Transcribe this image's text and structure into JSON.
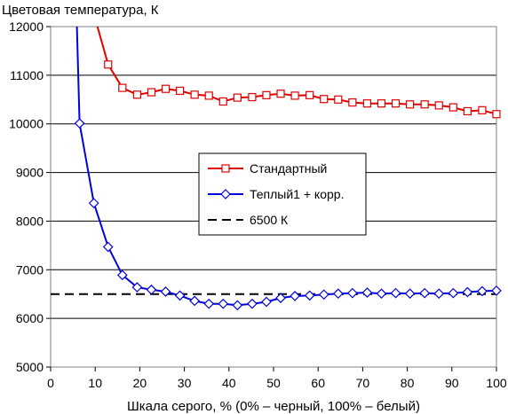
{
  "chart_data": {
    "type": "line",
    "title": "Цветовая температура, К",
    "xlabel": "Шкала серого, % (0% – черный, 100% – белый)",
    "ylabel": "",
    "xlim": [
      0,
      100
    ],
    "ylim": [
      5000,
      12000
    ],
    "x_ticks": [
      0,
      10,
      20,
      30,
      40,
      50,
      60,
      70,
      80,
      90,
      100
    ],
    "y_ticks": [
      5000,
      6000,
      7000,
      8000,
      9000,
      10000,
      11000,
      12000
    ],
    "grid": "horizontal",
    "legend_position": "center",
    "series": [
      {
        "name": "Стандартный",
        "color": "#e00000",
        "marker": "square",
        "line_only": [
          [
            10.5,
            12000
          ]
        ],
        "points": [
          [
            12.9,
            11220
          ],
          [
            16.1,
            10740
          ],
          [
            19.4,
            10600
          ],
          [
            22.6,
            10650
          ],
          [
            25.8,
            10720
          ],
          [
            29.0,
            10680
          ],
          [
            32.3,
            10600
          ],
          [
            35.5,
            10580
          ],
          [
            38.7,
            10460
          ],
          [
            41.9,
            10540
          ],
          [
            45.2,
            10550
          ],
          [
            48.4,
            10590
          ],
          [
            51.6,
            10620
          ],
          [
            54.8,
            10580
          ],
          [
            58.1,
            10590
          ],
          [
            61.3,
            10510
          ],
          [
            64.5,
            10500
          ],
          [
            67.7,
            10440
          ],
          [
            71.0,
            10420
          ],
          [
            74.2,
            10420
          ],
          [
            77.4,
            10420
          ],
          [
            80.6,
            10400
          ],
          [
            83.9,
            10400
          ],
          [
            87.1,
            10380
          ],
          [
            90.3,
            10340
          ],
          [
            93.5,
            10260
          ],
          [
            96.8,
            10280
          ],
          [
            100.0,
            10200
          ]
        ]
      },
      {
        "name": "Теплый1 + корр.",
        "color": "#0000e0",
        "marker": "diamond",
        "line_only": [
          [
            5.9,
            12000
          ]
        ],
        "points": [
          [
            6.5,
            10010
          ],
          [
            9.7,
            8370
          ],
          [
            12.9,
            7470
          ],
          [
            16.1,
            6890
          ],
          [
            19.4,
            6640
          ],
          [
            22.6,
            6590
          ],
          [
            25.8,
            6550
          ],
          [
            29.0,
            6470
          ],
          [
            32.3,
            6360
          ],
          [
            35.5,
            6300
          ],
          [
            38.7,
            6300
          ],
          [
            41.9,
            6270
          ],
          [
            45.2,
            6300
          ],
          [
            48.4,
            6340
          ],
          [
            51.6,
            6420
          ],
          [
            54.8,
            6460
          ],
          [
            58.1,
            6470
          ],
          [
            61.3,
            6490
          ],
          [
            64.5,
            6510
          ],
          [
            67.7,
            6520
          ],
          [
            71.0,
            6530
          ],
          [
            74.2,
            6510
          ],
          [
            77.4,
            6520
          ],
          [
            80.6,
            6510
          ],
          [
            83.9,
            6520
          ],
          [
            87.1,
            6510
          ],
          [
            90.3,
            6520
          ],
          [
            93.5,
            6540
          ],
          [
            96.8,
            6560
          ],
          [
            100.0,
            6570
          ]
        ]
      },
      {
        "name": "6500 К",
        "color": "#000000",
        "style": "dashed",
        "points": [
          [
            0,
            6500
          ],
          [
            100,
            6500
          ]
        ]
      }
    ]
  }
}
